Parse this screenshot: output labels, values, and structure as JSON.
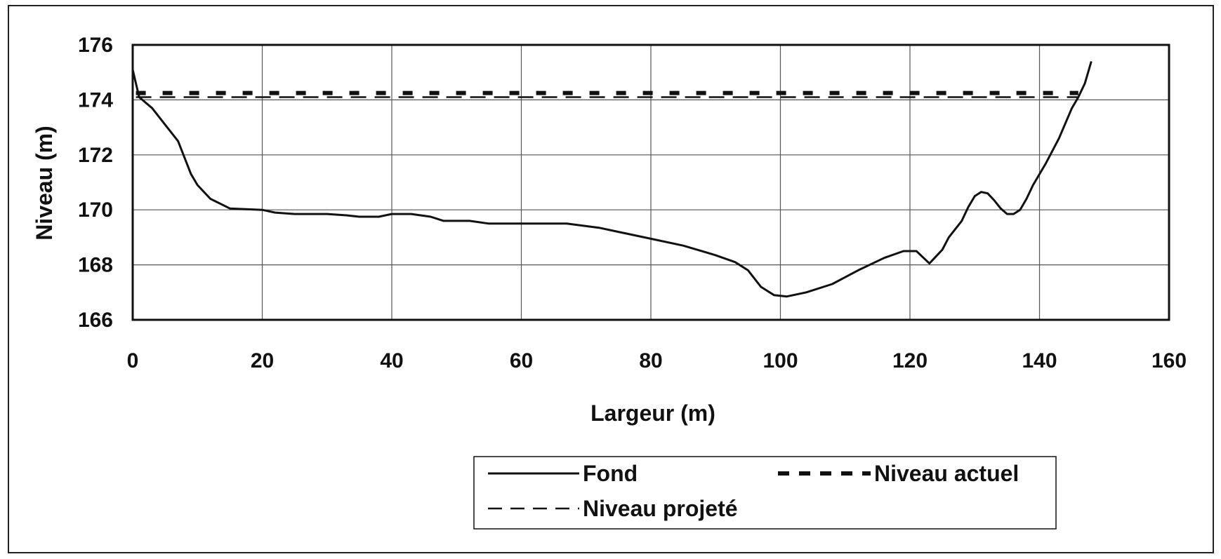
{
  "chart_data": {
    "type": "line",
    "xlabel": "Largeur (m)",
    "ylabel": "Niveau (m)",
    "xlim": [
      0,
      160
    ],
    "ylim": [
      166,
      176
    ],
    "x_ticks": [
      0,
      20,
      40,
      60,
      80,
      100,
      120,
      140,
      160
    ],
    "y_ticks": [
      166,
      168,
      170,
      172,
      174,
      176
    ],
    "x_tick_labels": [
      "0",
      "20",
      "40",
      "60",
      "80",
      "100",
      "120",
      "140",
      "160"
    ],
    "y_tick_labels": [
      "166",
      "168",
      "170",
      "172",
      "174",
      "176"
    ],
    "grid": true,
    "legend_position": "bottom-right",
    "series": [
      {
        "name": "Fond",
        "style": "solid",
        "color": "#111111",
        "points": [
          [
            0,
            175.1
          ],
          [
            1,
            174.1
          ],
          [
            3,
            173.7
          ],
          [
            5,
            173.1
          ],
          [
            7,
            172.5
          ],
          [
            8,
            171.9
          ],
          [
            9,
            171.3
          ],
          [
            10,
            170.9
          ],
          [
            12,
            170.4
          ],
          [
            15,
            170.05
          ],
          [
            20,
            170.0
          ],
          [
            22,
            169.9
          ],
          [
            25,
            169.85
          ],
          [
            30,
            169.85
          ],
          [
            33,
            169.8
          ],
          [
            35,
            169.75
          ],
          [
            38,
            169.75
          ],
          [
            40,
            169.85
          ],
          [
            43,
            169.85
          ],
          [
            46,
            169.75
          ],
          [
            48,
            169.6
          ],
          [
            52,
            169.6
          ],
          [
            55,
            169.5
          ],
          [
            60,
            169.5
          ],
          [
            67,
            169.5
          ],
          [
            72,
            169.35
          ],
          [
            75,
            169.2
          ],
          [
            80,
            168.95
          ],
          [
            85,
            168.7
          ],
          [
            90,
            168.35
          ],
          [
            93,
            168.1
          ],
          [
            95,
            167.8
          ],
          [
            97,
            167.2
          ],
          [
            99,
            166.9
          ],
          [
            101,
            166.85
          ],
          [
            104,
            167.0
          ],
          [
            108,
            167.3
          ],
          [
            112,
            167.8
          ],
          [
            116,
            168.25
          ],
          [
            119,
            168.5
          ],
          [
            121,
            168.5
          ],
          [
            123,
            168.05
          ],
          [
            124,
            168.3
          ],
          [
            125,
            168.55
          ],
          [
            126,
            169.0
          ],
          [
            128,
            169.6
          ],
          [
            129,
            170.1
          ],
          [
            130,
            170.5
          ],
          [
            131,
            170.65
          ],
          [
            132,
            170.6
          ],
          [
            133,
            170.35
          ],
          [
            134,
            170.05
          ],
          [
            135,
            169.85
          ],
          [
            136,
            169.85
          ],
          [
            137,
            170.0
          ],
          [
            138,
            170.4
          ],
          [
            139,
            170.9
          ],
          [
            141,
            171.7
          ],
          [
            143,
            172.6
          ],
          [
            145,
            173.7
          ],
          [
            146,
            174.1
          ],
          [
            147,
            174.6
          ],
          [
            148,
            175.4
          ]
        ]
      },
      {
        "name": "Niveau actuel",
        "style": "dashed-thick",
        "color": "#111111",
        "points": [
          [
            0.5,
            174.25
          ],
          [
            146,
            174.25
          ]
        ]
      },
      {
        "name": "Niveau projeté",
        "style": "dashed",
        "color": "#111111",
        "points": [
          [
            0.5,
            174.1
          ],
          [
            146,
            174.1
          ]
        ]
      }
    ]
  }
}
